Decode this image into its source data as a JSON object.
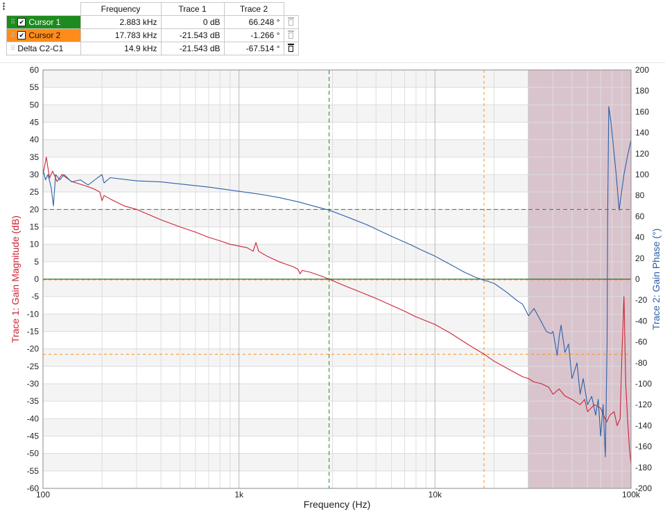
{
  "cursor_table": {
    "headers": [
      "",
      "Frequency",
      "Trace 1",
      "Trace 2"
    ],
    "rows": [
      {
        "name": "Cursor 1",
        "checked": true,
        "color": "#1e8b1e",
        "frequency": "2.883 kHz",
        "trace1": "0 dB",
        "trace2": "66.248 °",
        "delete_icon": "trash-icon"
      },
      {
        "name": "Cursor 2",
        "checked": true,
        "color": "#ff8c1a",
        "frequency": "17.783 kHz",
        "trace1": "-21.543 dB",
        "trace2": "-1.266 °",
        "delete_icon": "trash-icon"
      },
      {
        "name": "Delta C2-C1",
        "checked": false,
        "color": "#ffffff",
        "frequency": "14.9 kHz",
        "trace1": "-21.543 dB",
        "trace2": "-67.514 °",
        "delete_icon": "trash-icon"
      }
    ]
  },
  "chart_data": {
    "type": "line",
    "xlabel": "Frequency (Hz)",
    "x_scale": "log",
    "xlim": [
      100,
      100000
    ],
    "x_ticks": [
      "100",
      "1k",
      "10k",
      "100k"
    ],
    "ylabel_left": "Trace 1: Gain Magnitude (dB)",
    "ylim_left": [
      -60,
      60
    ],
    "y_ticks_left": [
      "60",
      "55",
      "50",
      "45",
      "40",
      "35",
      "30",
      "25",
      "20",
      "15",
      "10",
      "5",
      "0",
      "-5",
      "-10",
      "-15",
      "-20",
      "-25",
      "-30",
      "-35",
      "-40",
      "-45",
      "-50",
      "-55",
      "-60"
    ],
    "ylabel_right": "Trace 2: Gain Phase (°)",
    "ylim_right": [
      -200,
      200
    ],
    "y_ticks_right": [
      "200",
      "180",
      "160",
      "140",
      "120",
      "100",
      "80",
      "60",
      "40",
      "20",
      "0",
      "-20",
      "-40",
      "-60",
      "-80",
      "-100",
      "-120",
      "-140",
      "-160",
      "-180",
      "-200"
    ],
    "grid": true,
    "colors": {
      "trace1": "#cc2233",
      "trace2": "#2b5fa8",
      "cursor1": "#1e8b1e",
      "cursor2": "#ff8c1a",
      "shade": "#d9c4cd"
    },
    "shaded_region_x": [
      30000,
      100000
    ],
    "cursors": [
      {
        "name": "Cursor 1",
        "x": 2883,
        "y_left": 0,
        "y_right": 66.248
      },
      {
        "name": "Cursor 2",
        "x": 17783,
        "y_left": -21.543,
        "y_right": -1.266
      }
    ],
    "series": [
      {
        "axis": "left",
        "points": [
          [
            100,
            30
          ],
          [
            104,
            35
          ],
          [
            108,
            29
          ],
          [
            112,
            31
          ],
          [
            118,
            28
          ],
          [
            125,
            30
          ],
          [
            140,
            28
          ],
          [
            160,
            27
          ],
          [
            180,
            26
          ],
          [
            195,
            25
          ],
          [
            200,
            22.5
          ],
          [
            205,
            24
          ],
          [
            220,
            23
          ],
          [
            260,
            21
          ],
          [
            300,
            20
          ],
          [
            400,
            17
          ],
          [
            500,
            15
          ],
          [
            600,
            13.5
          ],
          [
            700,
            12
          ],
          [
            800,
            11
          ],
          [
            900,
            10
          ],
          [
            1000,
            9.5
          ],
          [
            1100,
            9
          ],
          [
            1180,
            8
          ],
          [
            1220,
            10.5
          ],
          [
            1260,
            8
          ],
          [
            1400,
            6.5
          ],
          [
            1600,
            5
          ],
          [
            1900,
            3.5
          ],
          [
            2000,
            2.8
          ],
          [
            2050,
            1.5
          ],
          [
            2100,
            2.5
          ],
          [
            2300,
            2
          ],
          [
            2600,
            1
          ],
          [
            2883,
            0
          ],
          [
            3500,
            -2
          ],
          [
            4000,
            -3.3
          ],
          [
            5000,
            -5.5
          ],
          [
            6000,
            -7.5
          ],
          [
            7000,
            -9.2
          ],
          [
            8000,
            -10.8
          ],
          [
            10000,
            -13
          ],
          [
            12000,
            -15.5
          ],
          [
            15000,
            -19
          ],
          [
            17783,
            -21.5
          ],
          [
            20000,
            -23.5
          ],
          [
            25000,
            -26.5
          ],
          [
            28000,
            -28
          ],
          [
            30000,
            -28.5
          ],
          [
            32000,
            -29.5
          ],
          [
            35000,
            -30
          ],
          [
            38000,
            -31
          ],
          [
            40000,
            -33
          ],
          [
            43000,
            -31.5
          ],
          [
            46000,
            -33.5
          ],
          [
            50000,
            -34.5
          ],
          [
            55000,
            -36
          ],
          [
            58000,
            -34.5
          ],
          [
            60000,
            -38
          ],
          [
            65000,
            -36
          ],
          [
            70000,
            -37
          ],
          [
            75000,
            -41
          ],
          [
            78000,
            -39
          ],
          [
            82000,
            -38
          ],
          [
            85000,
            -42
          ],
          [
            88000,
            -40
          ],
          [
            90000,
            -20
          ],
          [
            92000,
            -5
          ],
          [
            94000,
            -30
          ],
          [
            96000,
            -40
          ],
          [
            98000,
            -48
          ],
          [
            100000,
            -53
          ]
        ]
      },
      {
        "axis": "right",
        "points": [
          [
            100,
            105
          ],
          [
            103,
            95
          ],
          [
            106,
            100
          ],
          [
            110,
            88
          ],
          [
            113,
            70
          ],
          [
            116,
            100
          ],
          [
            122,
            95
          ],
          [
            128,
            100
          ],
          [
            133,
            97
          ],
          [
            140,
            93
          ],
          [
            155,
            95
          ],
          [
            170,
            90
          ],
          [
            190,
            97
          ],
          [
            200,
            100
          ],
          [
            205,
            92
          ],
          [
            220,
            97
          ],
          [
            300,
            94
          ],
          [
            400,
            93
          ],
          [
            500,
            91
          ],
          [
            700,
            88
          ],
          [
            1000,
            84
          ],
          [
            1300,
            81
          ],
          [
            1600,
            78
          ],
          [
            2000,
            74
          ],
          [
            2500,
            69
          ],
          [
            2883,
            66
          ],
          [
            3500,
            60
          ],
          [
            4500,
            52
          ],
          [
            6000,
            41
          ],
          [
            7500,
            33
          ],
          [
            8500,
            28
          ],
          [
            10000,
            22
          ],
          [
            12000,
            14
          ],
          [
            14000,
            7
          ],
          [
            16000,
            2
          ],
          [
            17783,
            -1
          ],
          [
            20000,
            -4
          ],
          [
            23000,
            -12
          ],
          [
            26000,
            -20
          ],
          [
            28000,
            -24
          ],
          [
            30000,
            -35
          ],
          [
            32000,
            -28
          ],
          [
            34000,
            -37
          ],
          [
            37000,
            -50
          ],
          [
            39000,
            -52
          ],
          [
            40000,
            -50
          ],
          [
            42000,
            -73
          ],
          [
            43000,
            -55
          ],
          [
            44000,
            -44
          ],
          [
            46000,
            -70
          ],
          [
            48000,
            -62
          ],
          [
            50000,
            -95
          ],
          [
            53000,
            -80
          ],
          [
            55000,
            -110
          ],
          [
            57000,
            -95
          ],
          [
            60000,
            -120
          ],
          [
            63000,
            -112
          ],
          [
            66000,
            -130
          ],
          [
            68000,
            -115
          ],
          [
            70000,
            -150
          ],
          [
            72000,
            -120
          ],
          [
            74000,
            -170
          ],
          [
            75500,
            -60
          ],
          [
            76000,
            60
          ],
          [
            77000,
            165
          ],
          [
            79000,
            150
          ],
          [
            81000,
            130
          ],
          [
            84000,
            100
          ],
          [
            87000,
            66
          ],
          [
            89000,
            80
          ],
          [
            92000,
            100
          ],
          [
            96000,
            118
          ],
          [
            100000,
            133
          ]
        ]
      }
    ]
  }
}
